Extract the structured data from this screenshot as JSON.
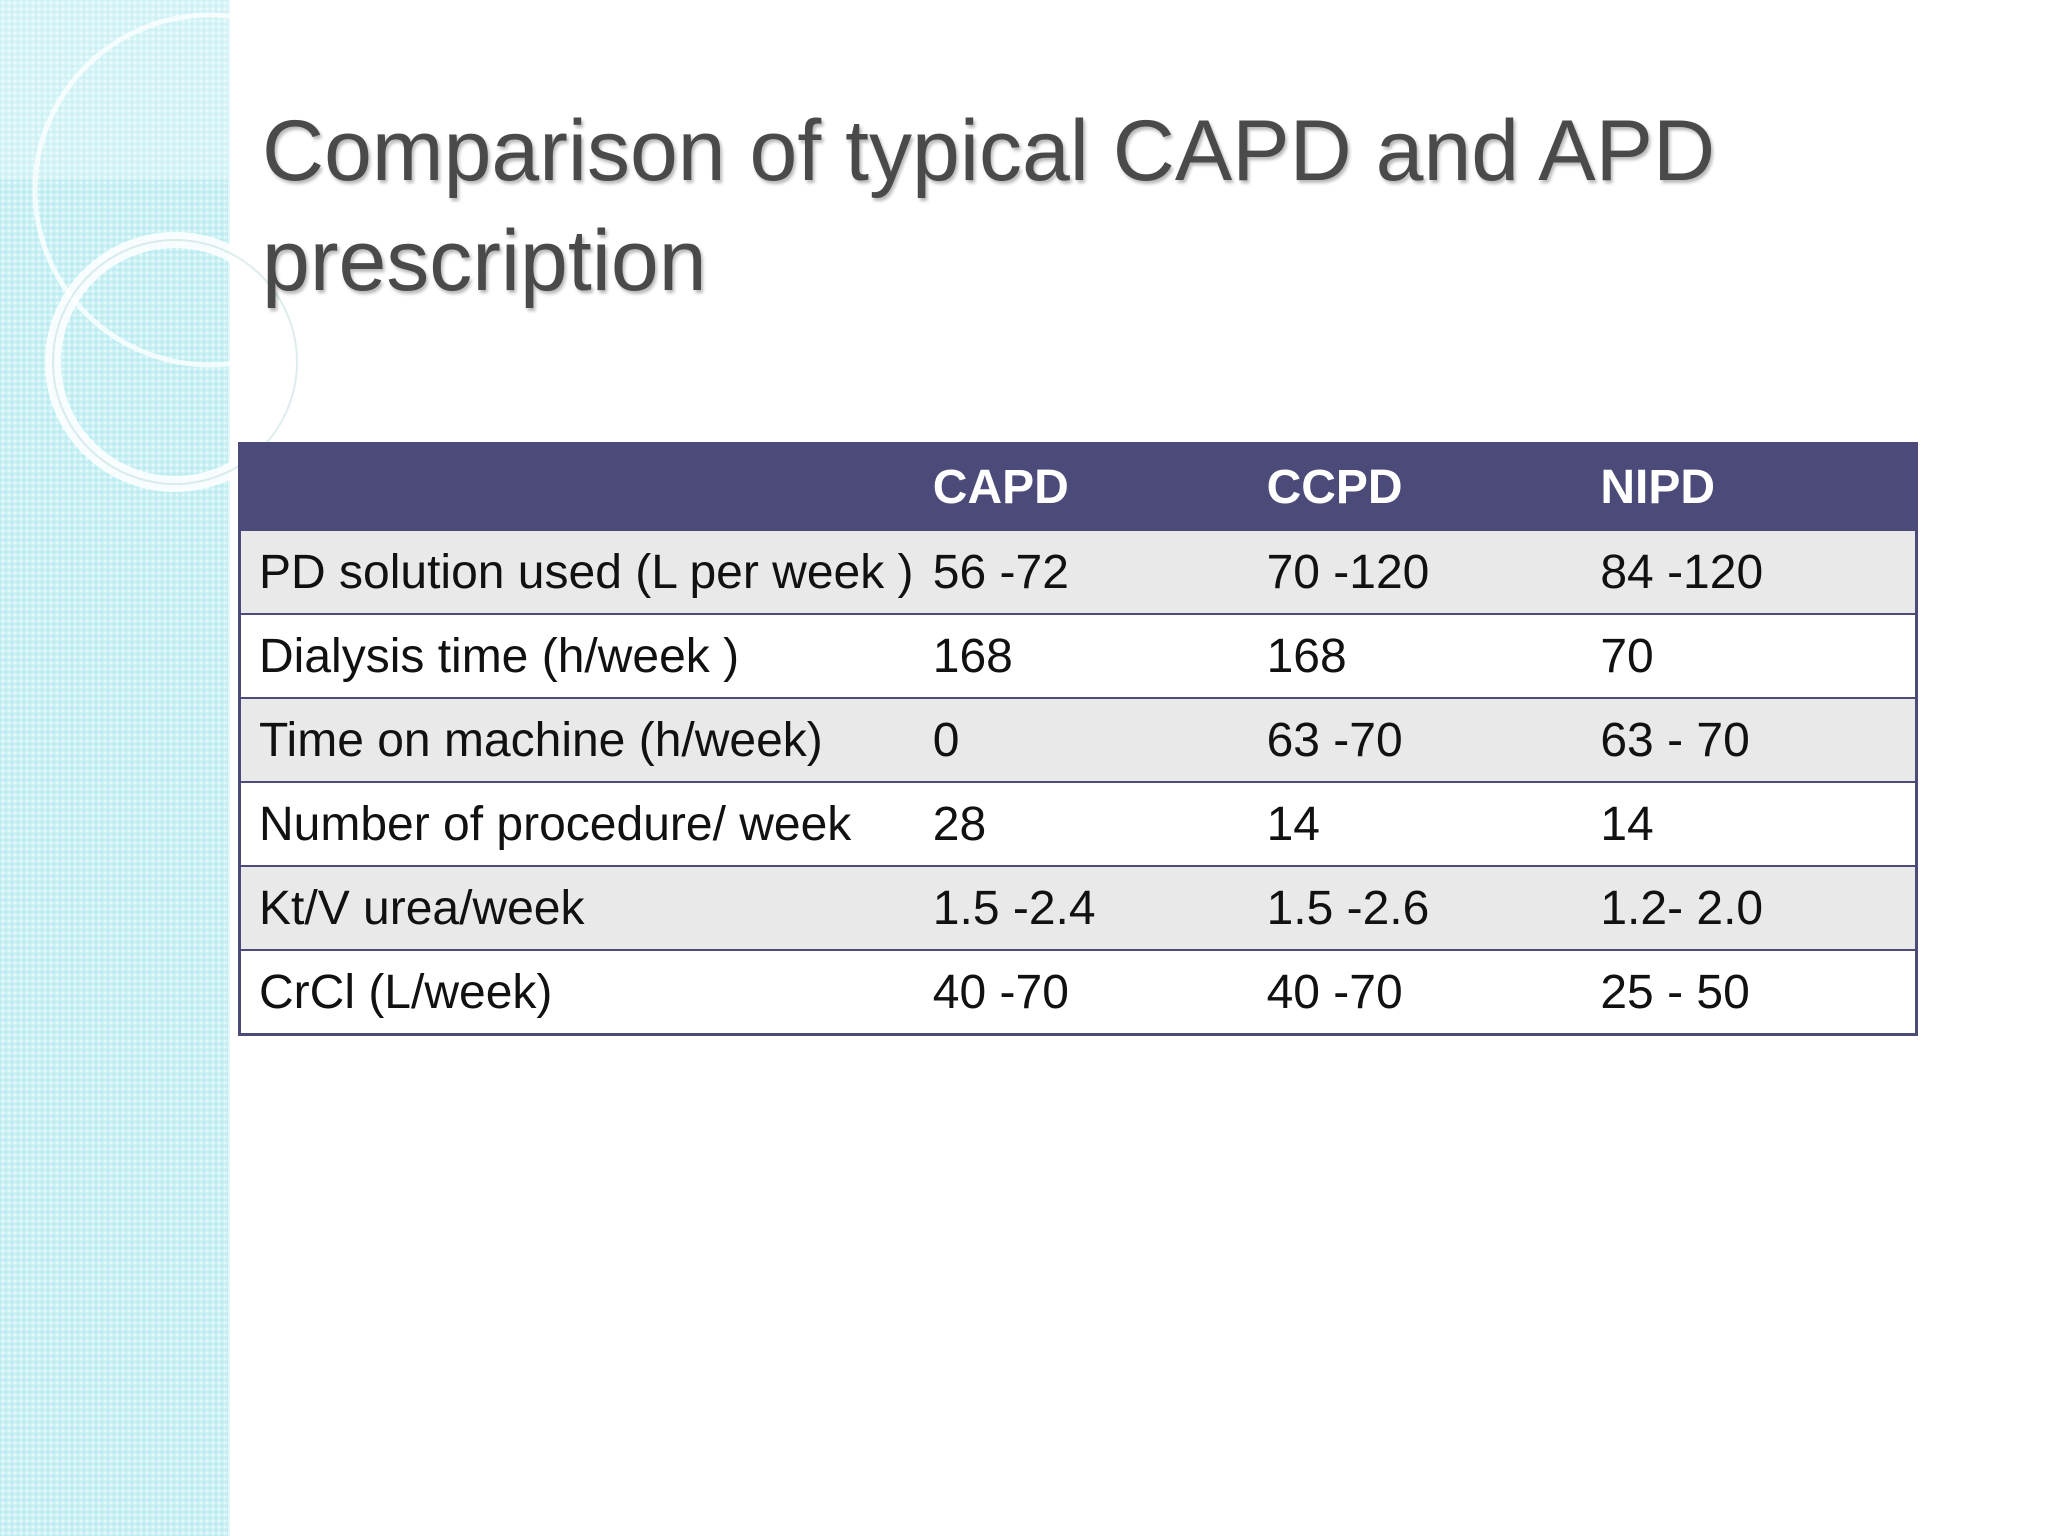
{
  "slide": {
    "title_line1": "Comparison of typical CAPD and APD",
    "title_line2": "prescription"
  },
  "table": {
    "headers": [
      "",
      "CAPD",
      "CCPD",
      "NIPD"
    ],
    "rows": [
      {
        "parameter": "PD solution used (L per week )",
        "capd": "56 -72",
        "ccpd": "70 -120",
        "nipd": "84 -120"
      },
      {
        "parameter": "Dialysis time (h/week )",
        "capd": "168",
        "ccpd": "168",
        "nipd": "70"
      },
      {
        "parameter": "Time on machine (h/week)",
        "capd": "0",
        "ccpd": "63 -70",
        "nipd": "63 - 70"
      },
      {
        "parameter": "Number of procedure/ week",
        "capd": "28",
        "ccpd": "14",
        "nipd": "14"
      },
      {
        "parameter": "Kt/V urea/week",
        "capd": "1.5 -2.4",
        "ccpd": "1.5 -2.6",
        "nipd": "1.2- 2.0"
      },
      {
        "parameter": "CrCl (L/week)",
        "capd": "40 -70",
        "ccpd": "40 -70",
        "nipd": "25 - 50"
      }
    ]
  },
  "colors": {
    "header_bg": "#4b4a79",
    "band_color": "#c9f1f5",
    "shade_row": "#e9e9e9",
    "title_color": "#4a4a4a"
  }
}
